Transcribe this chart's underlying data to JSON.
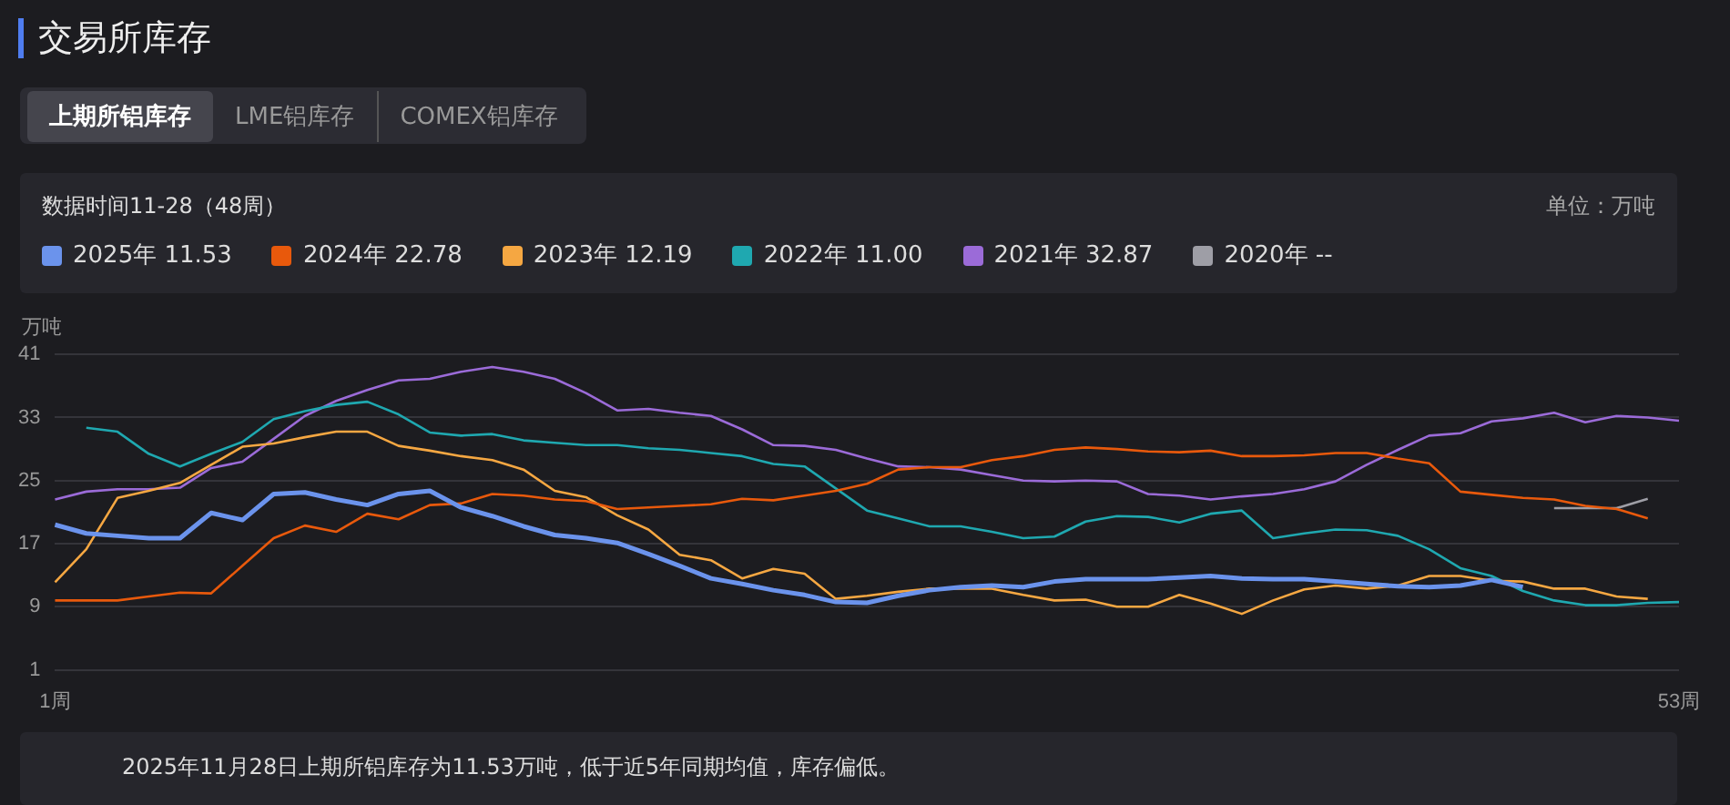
{
  "chart_data": {
    "type": "line",
    "title": "交易所库存",
    "subtitle": "数据时间11-28（48周）",
    "ylabel": "万吨",
    "annotations": [
      "上期所铝库存",
      "LME铝库存",
      "COMEX铝库存",
      "单位：万吨",
      "2025年11月28日上期所铝库存为11.53万吨，低于近5年同期均值，库存偏低。"
    ],
    "categories": [
      "1周",
      null,
      null,
      null,
      null,
      null,
      null,
      null,
      null,
      null,
      null,
      null,
      null,
      null,
      null,
      null,
      null,
      null,
      null,
      null,
      null,
      null,
      null,
      null,
      null,
      null,
      null,
      null,
      null,
      null,
      null,
      null,
      null,
      null,
      null,
      null,
      null,
      null,
      null,
      null,
      null,
      null,
      null,
      null,
      null,
      null,
      null,
      null,
      null,
      null,
      null,
      null,
      "53周"
    ],
    "ylim": [
      1,
      41
    ],
    "yticks": [
      1,
      9,
      17,
      25,
      33,
      41
    ],
    "grid": "y",
    "legend": "top",
    "marker": "none",
    "line_style": "solid",
    "series": [
      {
        "name": "2025年 11.53",
        "color": "#6b93ec",
        "values": [
          19.4,
          18.3,
          18.0,
          17.7,
          17.7,
          20.9,
          20.0,
          23.3,
          23.5,
          22.6,
          21.9,
          23.3,
          23.7,
          21.6,
          20.5,
          19.2,
          18.1,
          17.7,
          17.1,
          15.7,
          14.2,
          12.6,
          11.9,
          11.1,
          10.5,
          9.6,
          9.5,
          10.4,
          11.1,
          11.5,
          11.7,
          11.5,
          12.2,
          12.5,
          12.5,
          12.5,
          12.7,
          12.9,
          12.6,
          12.5,
          12.5,
          12.2,
          11.9,
          11.6,
          11.5,
          11.7,
          12.4,
          11.5,
          null,
          null,
          null,
          null,
          null
        ]
      },
      {
        "name": "2024年 22.78",
        "color": "#e8590c",
        "values": [
          9.8,
          9.8,
          9.8,
          10.3,
          10.8,
          10.7,
          14.2,
          17.7,
          19.3,
          18.5,
          20.8,
          20.1,
          21.9,
          22.1,
          23.3,
          23.1,
          22.6,
          22.4,
          21.4,
          21.6,
          21.8,
          22.0,
          22.7,
          22.5,
          23.1,
          23.7,
          24.6,
          26.4,
          26.7,
          26.7,
          27.6,
          28.1,
          28.9,
          29.2,
          29.0,
          28.7,
          28.6,
          28.8,
          28.1,
          28.1,
          28.2,
          28.5,
          28.5,
          27.8,
          27.2,
          23.6,
          23.2,
          22.8,
          22.6,
          21.8,
          21.4,
          20.2,
          null
        ]
      },
      {
        "name": "2023年 12.19",
        "color": "#f5a742",
        "values": [
          12.1,
          16.3,
          22.8,
          23.7,
          24.7,
          27.0,
          29.3,
          29.7,
          30.5,
          31.2,
          31.2,
          29.4,
          28.8,
          28.1,
          27.6,
          26.4,
          23.7,
          22.9,
          20.6,
          18.8,
          15.6,
          14.9,
          12.6,
          13.8,
          13.2,
          10.0,
          10.4,
          10.9,
          11.3,
          11.3,
          11.3,
          10.5,
          9.8,
          9.9,
          9.0,
          9.0,
          10.5,
          9.4,
          8.1,
          9.8,
          11.2,
          11.7,
          11.3,
          11.7,
          12.9,
          12.9,
          12.3,
          12.2,
          11.3,
          11.3,
          10.3,
          10.0,
          null
        ]
      },
      {
        "name": "2022年 11.00",
        "color": "#1fa8b0",
        "values": [
          null,
          31.7,
          31.2,
          28.4,
          26.8,
          28.4,
          29.9,
          32.8,
          33.8,
          34.6,
          35.0,
          33.4,
          31.1,
          30.7,
          30.9,
          30.1,
          29.8,
          29.5,
          29.5,
          29.1,
          28.9,
          28.5,
          28.1,
          27.1,
          26.8,
          24.0,
          21.2,
          20.2,
          19.2,
          19.2,
          18.5,
          17.7,
          17.9,
          19.8,
          20.5,
          20.4,
          19.7,
          20.8,
          21.2,
          17.7,
          18.3,
          18.8,
          18.7,
          18.0,
          16.3,
          13.9,
          12.9,
          11.0,
          9.8,
          9.2,
          9.2,
          9.5,
          9.6
        ]
      },
      {
        "name": "2021年 32.87",
        "color": "#9b6bd8",
        "values": [
          22.6,
          23.6,
          23.9,
          23.9,
          24.1,
          26.6,
          27.4,
          30.3,
          33.2,
          35.1,
          36.5,
          37.7,
          37.9,
          38.8,
          39.4,
          38.8,
          37.9,
          36.1,
          33.9,
          34.1,
          33.6,
          33.2,
          31.5,
          29.5,
          29.4,
          28.9,
          27.8,
          26.8,
          26.7,
          26.4,
          25.7,
          25.0,
          24.9,
          25.0,
          24.9,
          23.3,
          23.1,
          22.6,
          23.0,
          23.3,
          23.9,
          24.9,
          27.0,
          28.9,
          30.7,
          31.0,
          32.5,
          32.9,
          33.6,
          32.4,
          33.2,
          33.0,
          32.6
        ]
      },
      {
        "name": "2020年 --",
        "color": "#9e9ea6",
        "values": [
          null,
          null,
          null,
          null,
          null,
          null,
          null,
          null,
          null,
          null,
          null,
          null,
          null,
          null,
          null,
          null,
          null,
          null,
          null,
          null,
          null,
          null,
          null,
          null,
          null,
          null,
          null,
          null,
          null,
          null,
          null,
          null,
          null,
          null,
          null,
          null,
          null,
          null,
          null,
          null,
          null,
          null,
          null,
          null,
          null,
          null,
          null,
          null,
          21.5,
          21.5,
          21.5,
          22.7,
          null
        ]
      }
    ]
  }
}
